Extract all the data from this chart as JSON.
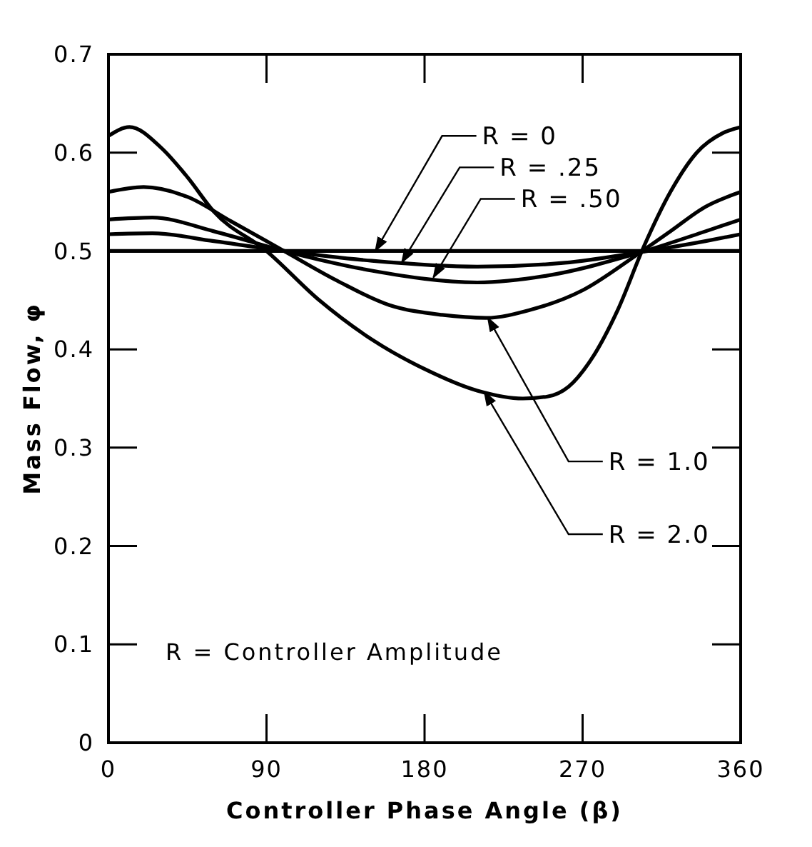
{
  "chart_data": {
    "type": "line",
    "xlabel": "Controller Phase Angle (β)",
    "ylabel": "Mass Flow, φ",
    "xlim": [
      0,
      360
    ],
    "xticks": [
      0,
      90,
      180,
      270,
      360
    ],
    "ylim": [
      0,
      0.7
    ],
    "yticks": [
      0,
      0.1,
      0.2,
      0.3,
      0.4,
      0.5,
      0.6,
      0.7
    ],
    "grid": false,
    "legend": "right",
    "marker": "none",
    "line_style": "solid",
    "series": [
      {
        "name": "R = 0",
        "color": "#000000",
        "x": [
          0,
          90,
          180,
          270,
          360
        ],
        "values": [
          0.5,
          0.5,
          0.5,
          0.5,
          0.5
        ]
      },
      {
        "name": "R = .25",
        "color": "#000000",
        "x": [
          0,
          25,
          60,
          100,
          150,
          210,
          260,
          300,
          340,
          360
        ],
        "values": [
          0.517,
          0.518,
          0.51,
          0.5,
          0.49,
          0.484,
          0.488,
          0.498,
          0.51,
          0.517
        ]
      },
      {
        "name": "R = .50",
        "color": "#000000",
        "x": [
          0,
          25,
          60,
          100,
          150,
          210,
          250,
          300,
          340,
          360
        ],
        "values": [
          0.532,
          0.534,
          0.52,
          0.5,
          0.48,
          0.468,
          0.475,
          0.497,
          0.52,
          0.532
        ]
      },
      {
        "name": "R = 1.0",
        "color": "#000000",
        "x": [
          0,
          20,
          45,
          70,
          100,
          130,
          160,
          190,
          215,
          240,
          270,
          300,
          320,
          340,
          360
        ],
        "values": [
          0.56,
          0.565,
          0.555,
          0.53,
          0.5,
          0.47,
          0.445,
          0.435,
          0.432,
          0.44,
          0.46,
          0.495,
          0.52,
          0.545,
          0.56
        ]
      },
      {
        "name": "R = 2.0",
        "color": "#000000",
        "x": [
          0,
          12,
          30,
          45,
          60,
          90,
          120,
          150,
          180,
          210,
          236,
          250,
          262,
          275,
          290,
          305,
          320,
          335,
          350,
          360
        ],
        "values": [
          0.617,
          0.626,
          0.605,
          0.575,
          0.54,
          0.5,
          0.45,
          0.41,
          0.38,
          0.358,
          0.35,
          0.352,
          0.362,
          0.39,
          0.44,
          0.505,
          0.56,
          0.6,
          0.62,
          0.626
        ]
      }
    ],
    "annotations": [
      "R = Controller Amplitude"
    ]
  }
}
